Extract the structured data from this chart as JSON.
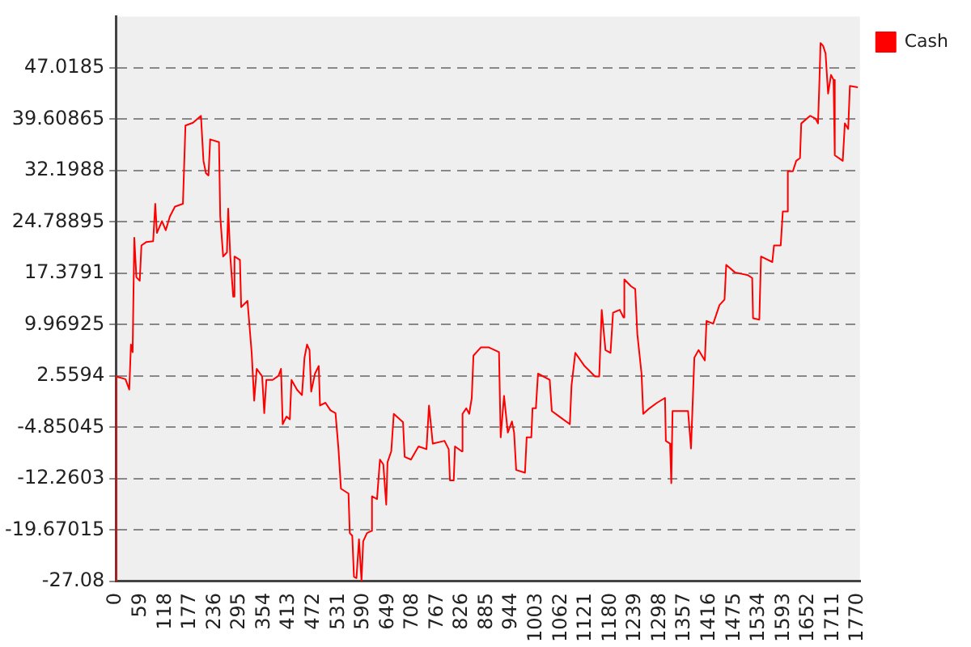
{
  "chart_data": {
    "type": "line",
    "legend": "top right",
    "grid": "y",
    "marker": "none",
    "line_style": "solid",
    "xlim": [
      0,
      1775
    ],
    "xticks": [
      0,
      59,
      118,
      177,
      236,
      295,
      354,
      413,
      472,
      531,
      590,
      649,
      708,
      767,
      826,
      885,
      944,
      1003,
      1062,
      1121,
      1180,
      1239,
      1298,
      1357,
      1416,
      1475,
      1534,
      1593,
      1652,
      1711,
      1770
    ],
    "ylim": [
      -27.08,
      54.42835
    ],
    "yticks": [
      -27.08,
      -19.67015,
      -12.2603,
      -4.85045,
      2.5594,
      9.96925,
      17.3791,
      24.78895,
      32.1988,
      39.60865,
      47.0185
    ],
    "series": [
      {
        "name": "Cash",
        "color": "#ff0000",
        "x": [
          0,
          1,
          23,
          32,
          36,
          40,
          44,
          49,
          57,
          61,
          73,
          89,
          94,
          98,
          110,
          119,
          129,
          141,
          160,
          166,
          184,
          203,
          209,
          215,
          221,
          225,
          246,
          249,
          256,
          265,
          268,
          273,
          280,
          283,
          296,
          299,
          314,
          324,
          330,
          336,
          349,
          354,
          359,
          374,
          388,
          394,
          398,
          407,
          415,
          419,
          432,
          444,
          450,
          456,
          462,
          466,
          475,
          484,
          487,
          500,
          512,
          524,
          531,
          537,
          555,
          558,
          564,
          568,
          574,
          580,
          586,
          590,
          599,
          609,
          611,
          623,
          630,
          638,
          645,
          648,
          657,
          663,
          685,
          689,
          704,
          722,
          741,
          747,
          756,
          784,
          794,
          797,
          806,
          809,
          825,
          827,
          836,
          843,
          849,
          853,
          871,
          889,
          914,
          918,
          926,
          935,
          945,
          950,
          955,
          976,
          980,
          991,
          994,
          1002,
          1007,
          1035,
          1040,
          1058,
          1083,
          1087,
          1096,
          1118,
          1143,
          1153,
          1159,
          1168,
          1180,
          1186,
          1202,
          1211,
          1213,
          1229,
          1239,
          1244,
          1254,
          1258,
          1273,
          1291,
          1310,
          1312,
          1322,
          1325,
          1328,
          1347,
          1365,
          1372,
          1380,
          1390,
          1405,
          1409,
          1425,
          1440,
          1452,
          1456,
          1477,
          1508,
          1518,
          1520,
          1535,
          1539,
          1566,
          1570,
          1586,
          1591,
          1600,
          1603,
          1615,
          1623,
          1632,
          1635,
          1656,
          1669,
          1675,
          1678,
          1681,
          1687,
          1693,
          1699,
          1706,
          1712,
          1715,
          1734,
          1739,
          1747,
          1751,
          1770
        ],
        "values": [
          -27.0,
          2.5,
          2.1,
          0.6,
          7.1,
          6.0,
          22.5,
          16.8,
          16.3,
          21.4,
          21.9,
          22.0,
          27.4,
          23.2,
          24.9,
          23.6,
          25.6,
          27.0,
          27.4,
          38.7,
          39.1,
          40.1,
          33.6,
          31.8,
          31.5,
          36.7,
          36.3,
          25.6,
          19.8,
          20.4,
          26.7,
          19.8,
          14.0,
          19.8,
          19.3,
          12.5,
          13.4,
          5.9,
          -1.0,
          3.6,
          2.5,
          -2.8,
          2.0,
          2.0,
          2.6,
          3.6,
          -4.4,
          -3.3,
          -3.7,
          2.0,
          0.6,
          -0.2,
          5.2,
          7.1,
          6.3,
          0.3,
          2.9,
          4.0,
          -1.7,
          -1.3,
          -2.4,
          -2.8,
          -7.9,
          -13.7,
          -14.4,
          -20.1,
          -20.5,
          -26.4,
          -26.6,
          -21.0,
          -27.0,
          -21.3,
          -20.1,
          -19.8,
          -14.8,
          -15.2,
          -9.5,
          -10.2,
          -16.0,
          -9.9,
          -8.3,
          -2.9,
          -4.1,
          -9.1,
          -9.5,
          -7.6,
          -8.0,
          -1.7,
          -7.2,
          -6.8,
          -8.0,
          -12.5,
          -12.5,
          -7.6,
          -8.3,
          -2.9,
          -2.1,
          -2.9,
          -0.6,
          5.5,
          6.7,
          6.7,
          6.0,
          -6.3,
          -0.3,
          -5.6,
          -4.0,
          -5.6,
          -11.0,
          -11.4,
          -6.3,
          -6.3,
          -2.1,
          -2.1,
          2.9,
          2.0,
          -2.5,
          -3.3,
          -4.4,
          1.2,
          5.9,
          4.0,
          2.5,
          2.5,
          12.1,
          6.3,
          5.9,
          11.7,
          12.1,
          11.0,
          16.5,
          15.5,
          15.1,
          8.6,
          2.9,
          -2.9,
          -2.1,
          -1.3,
          -0.6,
          -6.8,
          -7.2,
          -12.9,
          -2.5,
          -2.5,
          -2.5,
          -7.9,
          5.2,
          6.3,
          4.8,
          10.5,
          10.1,
          12.8,
          13.6,
          18.6,
          17.5,
          17.1,
          16.7,
          10.9,
          10.7,
          19.8,
          19.0,
          21.4,
          21.4,
          26.3,
          26.3,
          32.1,
          32.1,
          33.6,
          34.0,
          39.0,
          40.1,
          39.7,
          39.0,
          44.4,
          50.6,
          50.2,
          49.1,
          43.3,
          46.0,
          45.3,
          34.4,
          33.6,
          39.0,
          38.2,
          44.4,
          44.2
        ]
      }
    ]
  }
}
